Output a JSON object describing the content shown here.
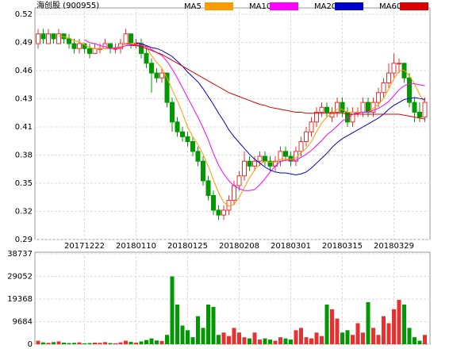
{
  "chart_data": {
    "type": "candlestick",
    "title": "海创股 (900955)",
    "categories": [
      null,
      null,
      null,
      null,
      null,
      null,
      null,
      null,
      null,
      "20171222",
      null,
      null,
      null,
      null,
      null,
      null,
      null,
      null,
      null,
      "20180110",
      null,
      null,
      null,
      null,
      null,
      null,
      null,
      null,
      null,
      "20180125",
      null,
      null,
      null,
      null,
      null,
      null,
      null,
      null,
      null,
      "20180208",
      null,
      null,
      null,
      null,
      null,
      null,
      null,
      null,
      null,
      "20180301",
      null,
      null,
      null,
      null,
      null,
      null,
      null,
      null,
      null,
      "20180315",
      null,
      null,
      null,
      null,
      null,
      null,
      null,
      null,
      null,
      "20180329",
      null,
      null,
      null,
      null,
      null,
      null
    ],
    "ohlc": [
      [
        0.49,
        0.505,
        0.485,
        0.5
      ],
      [
        0.5,
        0.505,
        0.49,
        0.495
      ],
      [
        0.49,
        0.505,
        0.49,
        0.5
      ],
      [
        0.5,
        0.5,
        0.49,
        0.495
      ],
      [
        0.49,
        0.505,
        0.49,
        0.5
      ],
      [
        0.5,
        0.5,
        0.49,
        0.495
      ],
      [
        0.495,
        0.5,
        0.485,
        0.49
      ],
      [
        0.49,
        0.495,
        0.48,
        0.485
      ],
      [
        0.485,
        0.495,
        0.48,
        0.49
      ],
      [
        0.49,
        0.49,
        0.48,
        0.485
      ],
      [
        0.485,
        0.49,
        0.475,
        0.48
      ],
      [
        0.48,
        0.49,
        0.48,
        0.485
      ],
      [
        0.485,
        0.49,
        0.48,
        0.485
      ],
      [
        0.485,
        0.495,
        0.485,
        0.49
      ],
      [
        0.49,
        0.49,
        0.48,
        0.485
      ],
      [
        0.485,
        0.49,
        0.48,
        0.485
      ],
      [
        0.485,
        0.495,
        0.48,
        0.49
      ],
      [
        0.49,
        0.505,
        0.49,
        0.5
      ],
      [
        0.5,
        0.5,
        0.485,
        0.49
      ],
      [
        0.49,
        0.495,
        0.485,
        0.49
      ],
      [
        0.49,
        0.495,
        0.475,
        0.48
      ],
      [
        0.48,
        0.485,
        0.465,
        0.47
      ],
      [
        0.47,
        0.475,
        0.44,
        0.46
      ],
      [
        0.46,
        0.465,
        0.45,
        0.455
      ],
      [
        0.455,
        0.465,
        0.45,
        0.46
      ],
      [
        0.46,
        0.46,
        0.425,
        0.43
      ],
      [
        0.43,
        0.435,
        0.4,
        0.41
      ],
      [
        0.41,
        0.415,
        0.395,
        0.4
      ],
      [
        0.4,
        0.405,
        0.39,
        0.395
      ],
      [
        0.395,
        0.4,
        0.385,
        0.39
      ],
      [
        0.39,
        0.395,
        0.375,
        0.38
      ],
      [
        0.38,
        0.385,
        0.365,
        0.37
      ],
      [
        0.37,
        0.375,
        0.345,
        0.35
      ],
      [
        0.35,
        0.355,
        0.33,
        0.335
      ],
      [
        0.335,
        0.34,
        0.315,
        0.32
      ],
      [
        0.32,
        0.325,
        0.31,
        0.315
      ],
      [
        0.315,
        0.325,
        0.31,
        0.32
      ],
      [
        0.32,
        0.335,
        0.315,
        0.33
      ],
      [
        0.33,
        0.35,
        0.325,
        0.345
      ],
      [
        0.345,
        0.36,
        0.34,
        0.355
      ],
      [
        0.355,
        0.38,
        0.35,
        0.37
      ],
      [
        0.37,
        0.375,
        0.36,
        0.365
      ],
      [
        0.365,
        0.375,
        0.36,
        0.37
      ],
      [
        0.37,
        0.38,
        0.365,
        0.375
      ],
      [
        0.375,
        0.38,
        0.365,
        0.37
      ],
      [
        0.37,
        0.375,
        0.36,
        0.365
      ],
      [
        0.365,
        0.375,
        0.36,
        0.37
      ],
      [
        0.37,
        0.385,
        0.365,
        0.38
      ],
      [
        0.38,
        0.385,
        0.37,
        0.375
      ],
      [
        0.375,
        0.38,
        0.365,
        0.37
      ],
      [
        0.37,
        0.385,
        0.365,
        0.38
      ],
      [
        0.38,
        0.395,
        0.375,
        0.39
      ],
      [
        0.39,
        0.405,
        0.385,
        0.4
      ],
      [
        0.4,
        0.415,
        0.395,
        0.41
      ],
      [
        0.41,
        0.425,
        0.405,
        0.42
      ],
      [
        0.42,
        0.43,
        0.415,
        0.425
      ],
      [
        0.425,
        0.43,
        0.415,
        0.42
      ],
      [
        0.415,
        0.425,
        0.41,
        0.42
      ],
      [
        0.42,
        0.435,
        0.415,
        0.43
      ],
      [
        0.43,
        0.435,
        0.415,
        0.42
      ],
      [
        0.42,
        0.425,
        0.405,
        0.41
      ],
      [
        0.41,
        0.425,
        0.405,
        0.42
      ],
      [
        0.42,
        0.425,
        0.415,
        0.42
      ],
      [
        0.42,
        0.435,
        0.415,
        0.43
      ],
      [
        0.43,
        0.435,
        0.415,
        0.42
      ],
      [
        0.42,
        0.435,
        0.415,
        0.43
      ],
      [
        0.43,
        0.445,
        0.425,
        0.44
      ],
      [
        0.44,
        0.455,
        0.435,
        0.45
      ],
      [
        0.45,
        0.47,
        0.445,
        0.46
      ],
      [
        0.46,
        0.48,
        0.455,
        0.47
      ],
      [
        0.47,
        0.475,
        0.46,
        0.47
      ],
      [
        0.47,
        0.47,
        0.45,
        0.455
      ],
      [
        0.455,
        0.46,
        0.425,
        0.43
      ],
      [
        0.43,
        0.435,
        0.41,
        0.42
      ],
      [
        0.42,
        0.43,
        0.41,
        0.415
      ],
      [
        0.415,
        0.435,
        0.41,
        0.43
      ]
    ],
    "ylim": [
      0.29,
      0.52
    ],
    "yticks": [
      0.29,
      {
        "value": 0.31875,
        "label": "0.32"
      },
      {
        "value": 0.3475,
        "label": "0.35"
      },
      {
        "value": 0.37625,
        "label": "0.38"
      },
      {
        "value": 0.405,
        "label": "0.41"
      },
      {
        "value": 0.43375,
        "label": "0.43"
      },
      {
        "value": 0.4625,
        "label": "0.46"
      },
      {
        "value": 0.49125,
        "label": "0.49"
      },
      0.52
    ],
    "up_color": "#e83030",
    "down_color": "#009900",
    "grid": true,
    "series": [
      {
        "name": "MA5",
        "color": "#ff9900",
        "values": [
          null,
          null,
          null,
          null,
          0.498,
          0.497,
          0.496,
          0.493,
          0.492,
          0.489,
          0.486,
          0.485,
          0.485,
          0.485,
          0.485,
          0.486,
          0.487,
          0.49,
          0.49,
          0.491,
          0.49,
          0.486,
          0.478,
          0.471,
          0.465,
          0.455,
          0.443,
          0.432,
          0.419,
          0.405,
          0.395,
          0.387,
          0.377,
          0.365,
          0.351,
          0.338,
          0.328,
          0.324,
          0.326,
          0.333,
          0.343,
          0.353,
          0.361,
          0.367,
          0.37,
          0.369,
          0.369,
          0.372,
          0.372,
          0.372,
          0.373,
          0.379,
          0.383,
          0.39,
          0.4,
          0.409,
          0.415,
          0.419,
          0.423,
          0.423,
          0.42,
          0.42,
          0.42,
          0.42,
          0.42,
          0.424,
          0.428,
          0.434,
          0.444,
          0.454,
          0.462,
          0.463,
          0.457,
          0.449,
          0.438,
          0.43
        ]
      },
      {
        "name": "MA10",
        "color": "#ff00ff",
        "values": [
          null,
          null,
          null,
          null,
          null,
          null,
          null,
          null,
          null,
          0.494,
          0.491,
          0.49,
          0.488,
          0.487,
          0.485,
          0.486,
          0.486,
          0.488,
          0.488,
          0.488,
          0.488,
          0.487,
          0.484,
          0.481,
          0.478,
          0.472,
          0.464,
          0.455,
          0.445,
          0.435,
          0.425,
          0.415,
          0.404,
          0.392,
          0.378,
          0.366,
          0.357,
          0.35,
          0.345,
          0.342,
          0.34,
          0.34,
          0.341,
          0.346,
          0.352,
          0.359,
          0.365,
          0.37,
          0.371,
          0.371,
          0.371,
          0.374,
          0.377,
          0.381,
          0.386,
          0.391,
          0.397,
          0.401,
          0.406,
          0.411,
          0.414,
          0.418,
          0.419,
          0.42,
          0.42,
          0.422,
          0.424,
          0.427,
          0.431,
          0.437,
          0.443,
          0.447,
          0.449,
          0.449,
          0.448,
          0.447
        ]
      },
      {
        "name": "MA20",
        "color": "#0000cc",
        "values": [
          null,
          null,
          null,
          null,
          null,
          null,
          null,
          null,
          null,
          null,
          null,
          null,
          null,
          null,
          null,
          null,
          null,
          null,
          null,
          0.491,
          0.49,
          0.488,
          0.486,
          0.485,
          0.483,
          0.48,
          0.477,
          0.472,
          0.467,
          0.461,
          0.456,
          0.451,
          0.444,
          0.436,
          0.428,
          0.419,
          0.411,
          0.402,
          0.395,
          0.389,
          0.383,
          0.377,
          0.372,
          0.368,
          0.364,
          0.361,
          0.359,
          0.358,
          0.358,
          0.357,
          0.356,
          0.357,
          0.359,
          0.363,
          0.368,
          0.373,
          0.378,
          0.384,
          0.389,
          0.393,
          0.396,
          0.399,
          0.402,
          0.405,
          0.408,
          0.411,
          0.414,
          0.418,
          0.423,
          0.427,
          0.43,
          0.433,
          0.434,
          0.435,
          0.434,
          0.433
        ]
      },
      {
        "name": "MA60",
        "color": "#dd0000",
        "values": [
          null,
          null,
          null,
          null,
          null,
          null,
          null,
          null,
          null,
          null,
          null,
          null,
          null,
          null,
          null,
          null,
          null,
          0.49,
          0.489,
          0.488,
          0.487,
          0.485,
          0.483,
          0.481,
          0.479,
          0.476,
          0.473,
          0.47,
          0.467,
          0.464,
          0.461,
          0.458,
          0.455,
          0.452,
          0.449,
          0.446,
          0.443,
          0.44,
          0.438,
          0.436,
          0.434,
          0.432,
          0.43,
          0.428,
          0.427,
          0.425,
          0.424,
          0.423,
          0.422,
          0.421,
          0.42,
          0.42,
          0.419,
          0.419,
          0.419,
          0.419,
          0.419,
          0.419,
          0.419,
          0.419,
          0.418,
          0.418,
          0.418,
          0.418,
          0.418,
          0.418,
          0.418,
          0.418,
          0.418,
          0.418,
          0.418,
          0.417,
          0.416,
          0.415,
          0.414,
          0.413
        ]
      }
    ],
    "volume": {
      "values": [
        1500,
        800,
        600,
        900,
        1200,
        700,
        500,
        600,
        800,
        400,
        500,
        700,
        600,
        900,
        500,
        400,
        800,
        1500,
        1000,
        700,
        1200,
        1800,
        2500,
        1600,
        1400,
        4000,
        29052,
        17000,
        8000,
        6000,
        3000,
        12000,
        7000,
        17000,
        16000,
        4000,
        5000,
        3500,
        7000,
        5000,
        3000,
        2500,
        5000,
        2000,
        2500,
        2000,
        1500,
        3000,
        2500,
        2000,
        6000,
        7000,
        3000,
        2500,
        5000,
        3500,
        17000,
        15000,
        11000,
        5000,
        6000,
        4000,
        9000,
        5000,
        18000,
        7000,
        4000,
        12000,
        9000,
        15000,
        19000,
        17000,
        7000,
        3000,
        1500,
        4000
      ],
      "ylim": [
        0,
        38737
      ],
      "yticks": [
        0,
        9684,
        19368,
        29052,
        38737
      ]
    }
  }
}
